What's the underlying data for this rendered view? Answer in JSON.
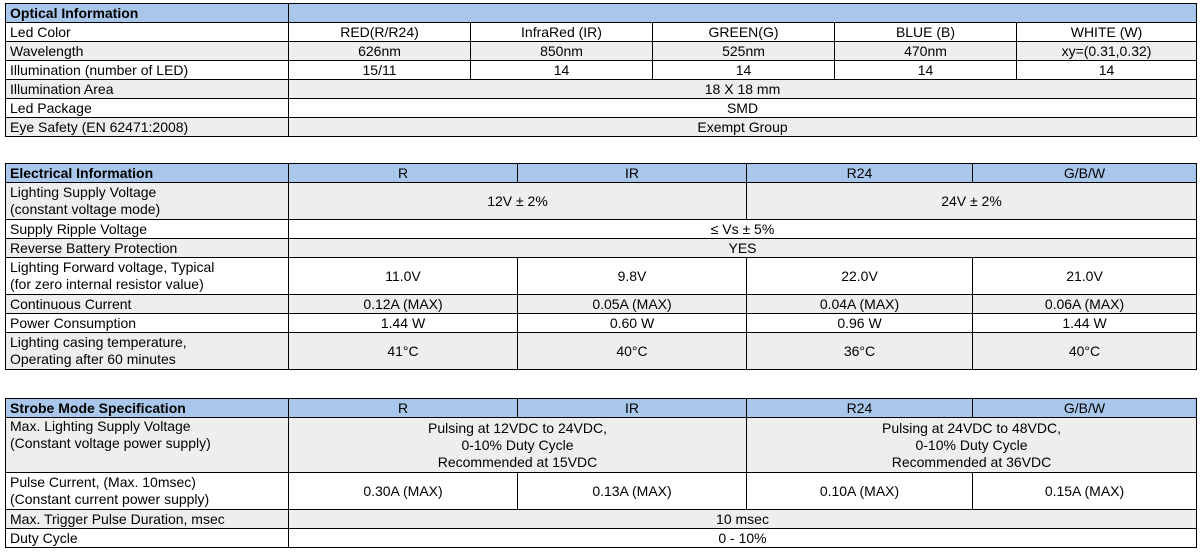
{
  "optical": {
    "title": "Optical Information",
    "rows": {
      "led_color": {
        "label": "Led Color",
        "values": [
          "RED(R/R24)",
          "InfraRed (IR)",
          "GREEN(G)",
          "BLUE (B)",
          "WHITE (W)"
        ]
      },
      "wavelength": {
        "label": "Wavelength",
        "values": [
          "626nm",
          "850nm",
          "525nm",
          "470nm",
          "xy=(0.31,0.32)"
        ]
      },
      "illumination": {
        "label": "Illumination (number of LED)",
        "values": [
          "15/11",
          "14",
          "14",
          "14",
          "14"
        ]
      },
      "area": {
        "label": "Illumination Area",
        "value": "18 X 18 mm"
      },
      "package": {
        "label": "Led Package",
        "value": "SMD"
      },
      "eye_safety": {
        "label": "Eye Safety (EN 62471:2008)",
        "value": "Exempt Group"
      }
    }
  },
  "electrical": {
    "title": "Electrical Information",
    "columns": [
      "R",
      "IR",
      "R24",
      "G/B/W"
    ],
    "rows": {
      "supply_voltage": {
        "label1": "Lighting Supply Voltage",
        "label2": "(constant voltage mode)",
        "left": "12V ± 2%",
        "right": "24V ± 2%"
      },
      "ripple": {
        "label": "Supply Ripple Voltage",
        "value": "≤ Vs ± 5%"
      },
      "reverse": {
        "label": "Reverse Battery Protection",
        "value": "YES"
      },
      "forward_voltage": {
        "label1": "Lighting Forward voltage, Typical",
        "label2": "(for zero internal resistor value)",
        "values": [
          "11.0V",
          "9.8V",
          "22.0V",
          "21.0V"
        ]
      },
      "current": {
        "label": "Continuous Current",
        "values": [
          "0.12A (MAX)",
          "0.05A (MAX)",
          "0.04A (MAX)",
          "0.06A (MAX)"
        ]
      },
      "power": {
        "label": "Power Consumption",
        "values": [
          "1.44 W",
          "0.60 W",
          "0.96 W",
          "1.44 W"
        ]
      },
      "temperature": {
        "label1": "Lighting casing temperature,",
        "label2": "Operating after 60 minutes",
        "values": [
          "41°C",
          "40°C",
          "36°C",
          "40°C"
        ]
      }
    }
  },
  "strobe": {
    "title": "Strobe Mode Specification",
    "columns": [
      "R",
      "IR",
      "R24",
      "G/B/W"
    ],
    "rows": {
      "max_voltage": {
        "label1": "Max. Lighting Supply Voltage",
        "label2": "(Constant voltage power supply)",
        "left": [
          "Pulsing at 12VDC to 24VDC,",
          "0-10% Duty Cycle",
          "Recommended at 15VDC"
        ],
        "right": [
          "Pulsing at 24VDC to 48VDC,",
          "0-10% Duty Cycle",
          "Recommended at 36VDC"
        ]
      },
      "pulse_current": {
        "label1": "Pulse Current, (Max. 10msec)",
        "label2": "(Constant current power supply)",
        "values": [
          "0.30A (MAX)",
          "0.13A (MAX)",
          "0.10A (MAX)",
          "0.15A (MAX)"
        ]
      },
      "trigger": {
        "label": "Max. Trigger Pulse Duration, msec",
        "value": "10 msec"
      },
      "duty": {
        "label": "Duty Cycle",
        "value": "0 - 10%"
      }
    }
  }
}
